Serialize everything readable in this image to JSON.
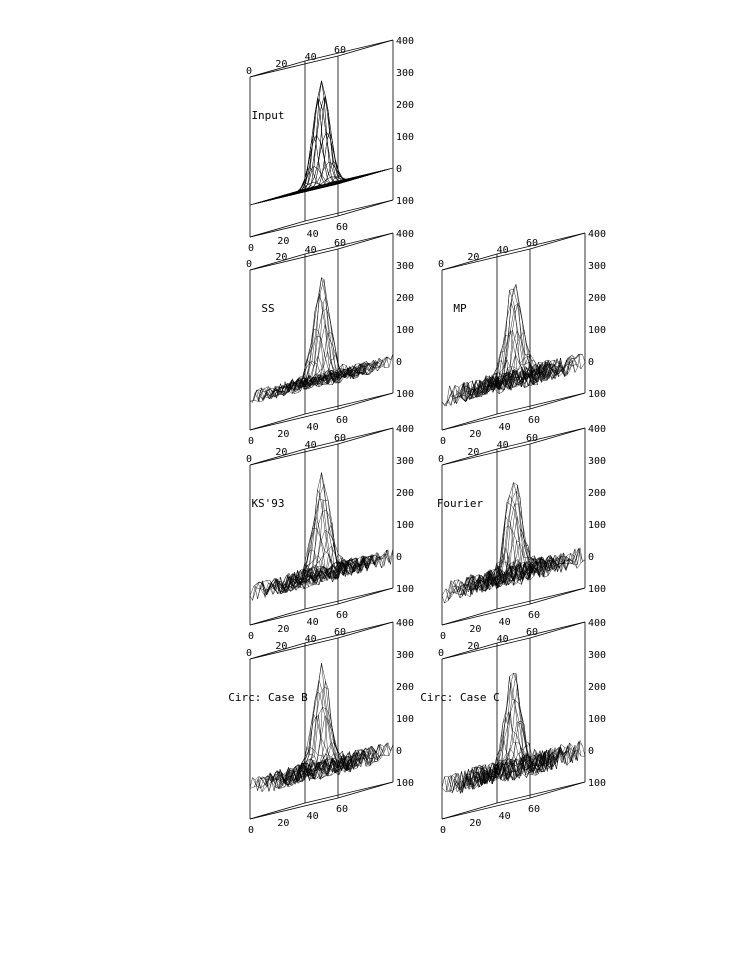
{
  "chart_data": [
    {
      "type": "surface",
      "title": "Input",
      "axis_ticks": {
        "x": [
          "0",
          "20",
          "40",
          "60"
        ],
        "y": [
          "0",
          "20",
          "40",
          "60"
        ],
        "z": [
          "400",
          "300",
          "200",
          "100",
          "0",
          "100"
        ]
      },
      "zlim": [
        -100,
        400
      ],
      "peak": 330,
      "noise": 0
    },
    {
      "type": "surface",
      "title": "SS",
      "axis_ticks": {
        "x": [
          "0",
          "20",
          "40",
          "60"
        ],
        "y": [
          "0",
          "20",
          "40",
          "60"
        ],
        "z": [
          "400",
          "300",
          "200",
          "100",
          "0",
          "100"
        ]
      },
      "zlim": [
        -100,
        400
      ],
      "peak": 310,
      "noise": 22
    },
    {
      "type": "surface",
      "title": "MP",
      "axis_ticks": {
        "x": [
          "0",
          "20",
          "40",
          "60"
        ],
        "y": [
          "0",
          "20",
          "40",
          "60"
        ],
        "z": [
          "400",
          "300",
          "200",
          "100",
          "0",
          "100"
        ]
      },
      "zlim": [
        -100,
        400
      ],
      "peak": 300,
      "noise": 32
    },
    {
      "type": "surface",
      "title": "KS'93",
      "axis_ticks": {
        "x": [
          "0",
          "20",
          "40",
          "60"
        ],
        "y": [
          "0",
          "20",
          "40",
          "60"
        ],
        "z": [
          "400",
          "300",
          "200",
          "100",
          "0",
          "100"
        ]
      },
      "zlim": [
        -100,
        400
      ],
      "peak": 300,
      "noise": 28
    },
    {
      "type": "surface",
      "title": "Fourier",
      "axis_ticks": {
        "x": [
          "0",
          "20",
          "40",
          "60"
        ],
        "y": [
          "0",
          "20",
          "40",
          "60"
        ],
        "z": [
          "400",
          "300",
          "200",
          "100",
          "0",
          "100"
        ]
      },
      "zlim": [
        -100,
        400
      ],
      "peak": 295,
      "noise": 34
    },
    {
      "type": "surface",
      "title": "Circ: Case B",
      "axis_ticks": {
        "x": [
          "0",
          "20",
          "40",
          "60"
        ],
        "y": [
          "0",
          "20",
          "40",
          "60"
        ],
        "z": [
          "400",
          "300",
          "200",
          "100",
          "0",
          "100"
        ]
      },
      "zlim": [
        -100,
        400
      ],
      "peak": 300,
      "noise": 30
    },
    {
      "type": "surface",
      "title": "Circ: Case C",
      "axis_ticks": {
        "x": [
          "0",
          "20",
          "40",
          "60"
        ],
        "y": [
          "0",
          "20",
          "40",
          "60"
        ],
        "z": [
          "400",
          "300",
          "200",
          "100",
          "0",
          "100"
        ]
      },
      "zlim": [
        -100,
        400
      ],
      "peak": 295,
      "noise": 36
    }
  ]
}
